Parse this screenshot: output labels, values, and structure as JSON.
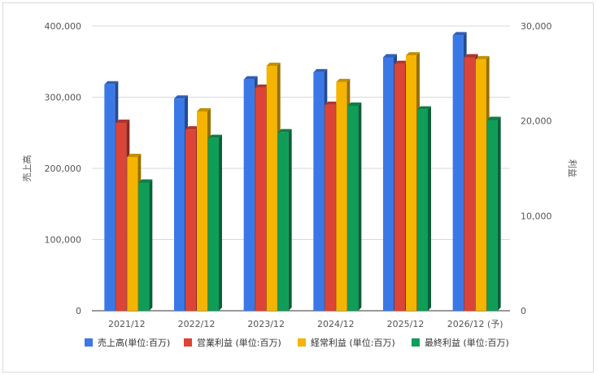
{
  "chart_data": {
    "type": "bar",
    "title": "",
    "categories": [
      "2021/12",
      "2022/12",
      "2023/12",
      "2024/12",
      "2025/12",
      "2026/12 (予)"
    ],
    "ylabel_left": "売上高",
    "ylabel_right": "利益",
    "ylim_left": [
      0,
      400000
    ],
    "ylim_right": [
      0,
      30000
    ],
    "yticks_left": [
      "0",
      "100,000",
      "200,000",
      "300,000",
      "400,000"
    ],
    "yticks_right": [
      "0",
      "10,000",
      "20,000",
      "30,000"
    ],
    "grid": true,
    "legend_position": "bottom",
    "series": [
      {
        "name": "売上高(単位:百万)",
        "axis": "left",
        "color": "#3b78e7",
        "values": [
          318000,
          298000,
          325000,
          335000,
          356000,
          387000
        ]
      },
      {
        "name": "営業利益 (単位:百万)",
        "axis": "right",
        "color": "#db4437",
        "values": [
          19800,
          19100,
          23500,
          21700,
          26000,
          26700
        ]
      },
      {
        "name": "経常利益 (単位:百万)",
        "axis": "right",
        "color": "#f4b400",
        "values": [
          16200,
          21000,
          25800,
          24100,
          26900,
          26500
        ]
      },
      {
        "name": "最終利益 (単位:百万)",
        "axis": "right",
        "color": "#0f9d58",
        "values": [
          13500,
          18200,
          18800,
          21600,
          21200,
          20100
        ]
      }
    ]
  }
}
